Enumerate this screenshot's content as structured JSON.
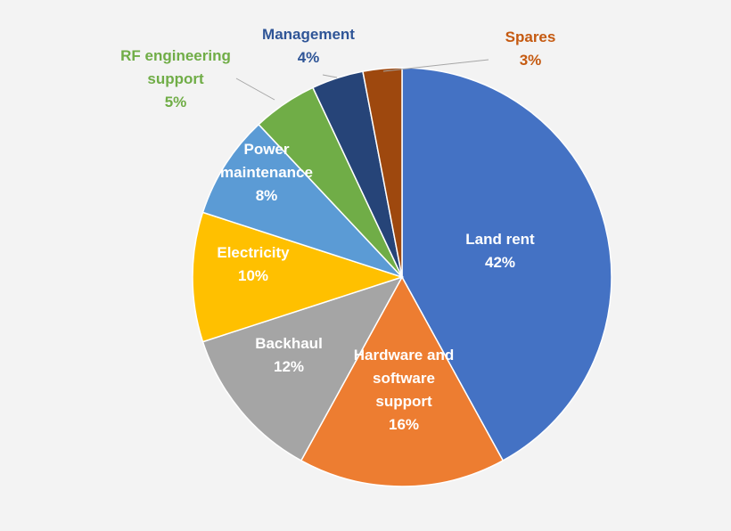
{
  "chart_data": {
    "type": "pie",
    "start_angle_deg": 0,
    "direction": "clockwise",
    "slices": [
      {
        "label": "Land rent",
        "value": 42,
        "value_label": "42%",
        "color": "#4472c4",
        "label_color": "#ffffff"
      },
      {
        "label": "Hardware and software support",
        "value": 16,
        "value_label": "16%",
        "color": "#ed7d31",
        "label_color": "#ffffff"
      },
      {
        "label": "Backhaul",
        "value": 12,
        "value_label": "12%",
        "color": "#a5a5a5",
        "label_color": "#ffffff"
      },
      {
        "label": "Electricity",
        "value": 10,
        "value_label": "10%",
        "color": "#ffc000",
        "label_color": "#ffffff"
      },
      {
        "label": "Power maintenance",
        "value": 8,
        "value_label": "8%",
        "color": "#5b9bd5",
        "label_color": "#ffffff"
      },
      {
        "label": "RF engineering support",
        "value": 5,
        "value_label": "5%",
        "color": "#70ad47",
        "label_color": "#70ad47"
      },
      {
        "label": "Management",
        "value": 4,
        "value_label": "4%",
        "color": "#264478",
        "label_color": "#2f5597"
      },
      {
        "label": "Spares",
        "value": 3,
        "value_label": "3%",
        "color": "#9e480e",
        "label_color": "#c55a11"
      }
    ]
  }
}
